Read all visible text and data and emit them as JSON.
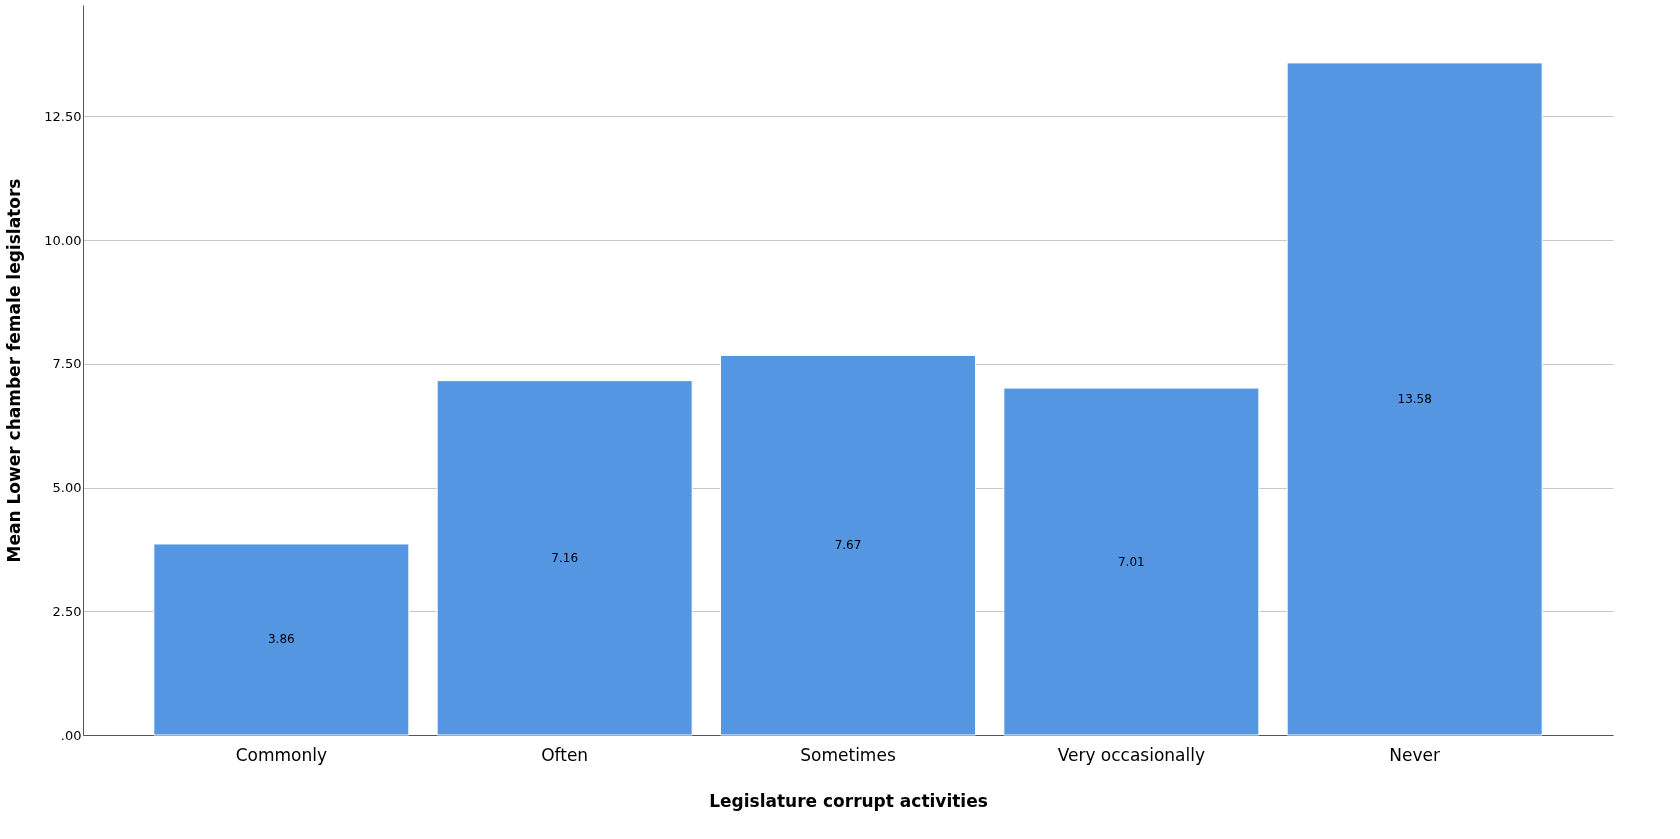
{
  "chart_data": {
    "type": "bar",
    "xlabel": "Legislature corrupt activities",
    "ylabel": "Mean Lower chamber female legislators",
    "categories": [
      "Commonly",
      "Often",
      "Sometimes",
      "Very occasionally",
      "Never"
    ],
    "values": [
      3.86,
      7.16,
      7.67,
      7.01,
      13.58
    ],
    "color": "#5596e3",
    "ylim": [
      0,
      14.75
    ],
    "yticks": [
      {
        "value": 0,
        "label": ".00"
      },
      {
        "value": 2.5,
        "label": "2.50"
      },
      {
        "value": 5,
        "label": "5.00"
      },
      {
        "value": 7.5,
        "label": "7.50"
      },
      {
        "value": 10,
        "label": "10.00"
      },
      {
        "value": 12.5,
        "label": "12.50"
      }
    ],
    "grid": "y",
    "data_labels": true
  }
}
